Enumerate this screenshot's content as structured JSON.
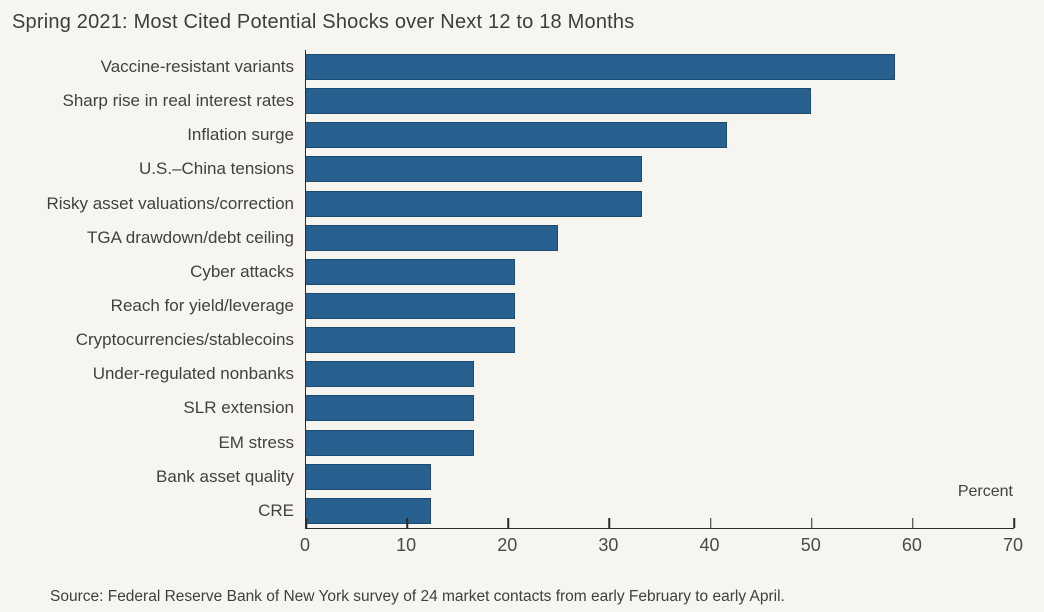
{
  "source_note": "Source: Federal Reserve Bank of New York survey of 24 market contacts from early February to early April.",
  "colors": {
    "background": "#f7f5f0",
    "bar_fill": "#28618f",
    "bar_border": "#1d4c72",
    "axis": "#2b2b2b",
    "text": "#3f3f3f"
  },
  "chart_data": {
    "type": "bar",
    "orientation": "horizontal",
    "title": "Spring 2021: Most Cited Potential Shocks over Next 12 to 18 Months",
    "categories": [
      "Vaccine-resistant variants",
      "Sharp rise in real interest rates",
      "Inflation surge",
      "U.S.–China tensions",
      "Risky asset valuations/correction",
      "TGA drawdown/debt ceiling",
      "Cyber attacks",
      "Reach for yield/leverage",
      "Cryptocurrencies/stablecoins",
      "Under-regulated nonbanks",
      "SLR extension",
      "EM stress",
      "Bank asset quality",
      "CRE"
    ],
    "values": [
      58.3,
      50.0,
      41.7,
      33.3,
      33.3,
      25.0,
      20.8,
      20.8,
      20.8,
      16.7,
      16.7,
      16.7,
      12.5,
      12.5
    ],
    "xlabel": "Percent",
    "xlim": [
      0,
      70
    ],
    "xticks": [
      0,
      10,
      20,
      30,
      40,
      50,
      60,
      70
    ],
    "grid": false,
    "legend": false
  }
}
